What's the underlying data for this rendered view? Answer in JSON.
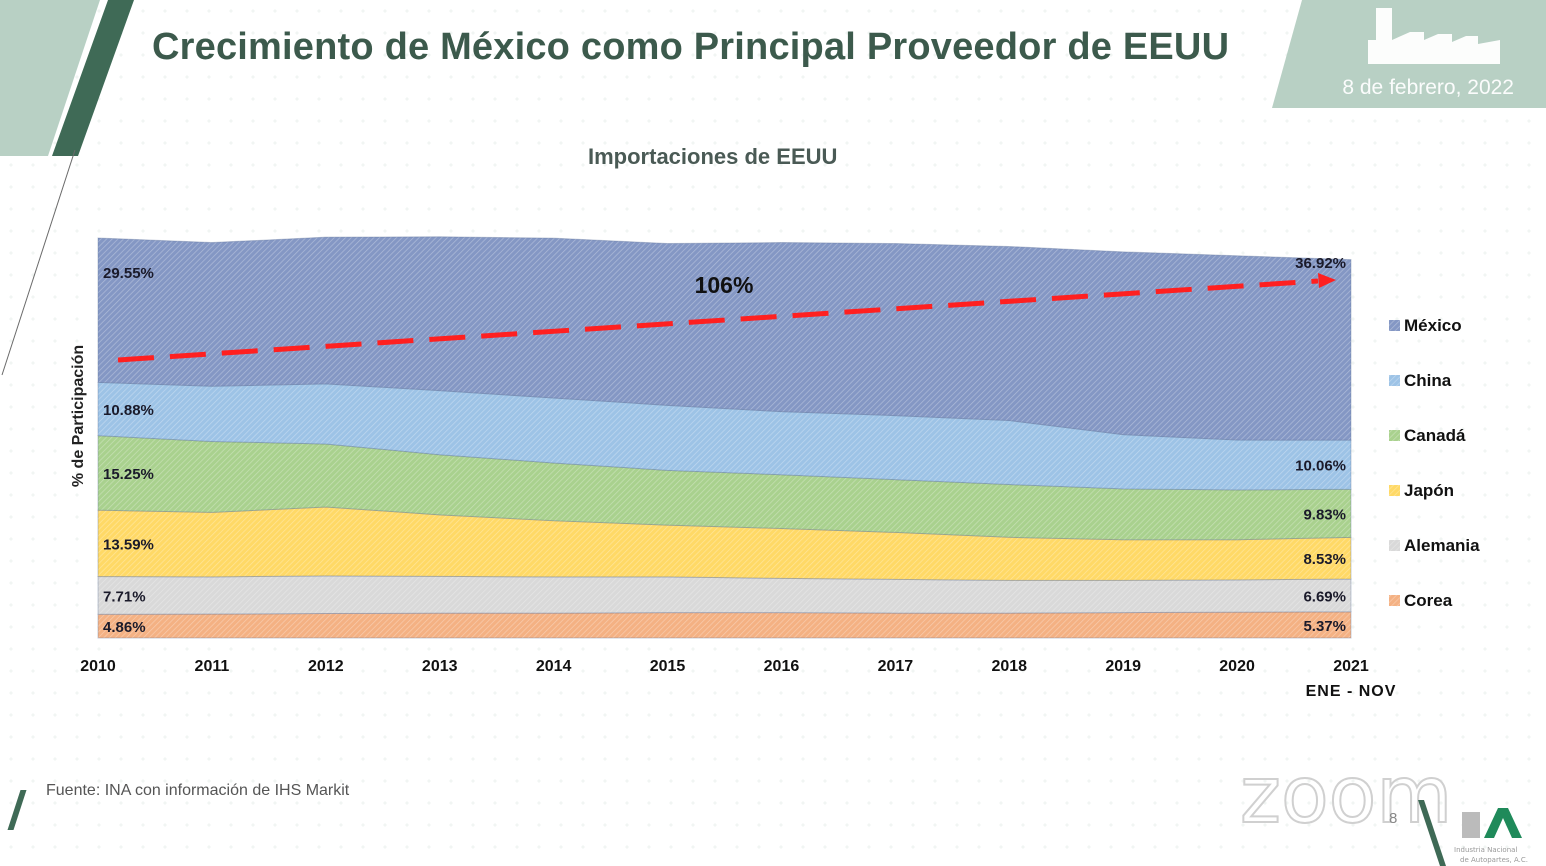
{
  "slide": {
    "title": "Crecimiento de México como Principal Proveedor de EEUU",
    "date": "8 de febrero, 2022",
    "source": "Fuente: INA con información de IHS Markit",
    "page_number": "8",
    "watermark": "zoom",
    "logo_text": "Industria Nacional de Autopartes, A.C.",
    "header_icon": "factory-icon"
  },
  "chart_data": {
    "type": "area",
    "stacked": true,
    "title": "Importaciones de EEUU",
    "xlabel": "",
    "ylabel": "% de Participación",
    "categories": [
      "2010",
      "2011",
      "2012",
      "2013",
      "2014",
      "2015",
      "2016",
      "2017",
      "2018",
      "2019",
      "2020",
      "2021"
    ],
    "last_category_sublabel": "ENE - NOV",
    "legend_position": "right",
    "grid": false,
    "series": [
      {
        "name": "Corea",
        "color": "#f4b183",
        "values": [
          4.86,
          4.9,
          5.0,
          5.1,
          5.1,
          5.2,
          5.2,
          5.1,
          5.1,
          5.2,
          5.3,
          5.37
        ]
      },
      {
        "name": "Alemania",
        "color": "#d9d9d9",
        "values": [
          7.71,
          7.6,
          7.7,
          7.5,
          7.4,
          7.3,
          7.0,
          6.9,
          6.7,
          6.6,
          6.6,
          6.69
        ]
      },
      {
        "name": "Japón",
        "color": "#ffd966",
        "values": [
          13.59,
          13.2,
          14.1,
          12.6,
          11.5,
          10.6,
          10.2,
          9.6,
          8.8,
          8.3,
          8.2,
          8.53
        ]
      },
      {
        "name": "Canadá",
        "color": "#a9d18e",
        "values": [
          15.25,
          14.5,
          12.9,
          12.3,
          11.8,
          11.2,
          11.0,
          10.8,
          10.8,
          10.4,
          10.2,
          9.83
        ]
      },
      {
        "name": "China",
        "color": "#9dc3e6",
        "values": [
          10.88,
          11.3,
          12.3,
          13.1,
          13.3,
          13.3,
          12.9,
          13.1,
          13.1,
          11.1,
          10.2,
          10.06
        ]
      },
      {
        "name": "México",
        "color": "#8497c4",
        "values": [
          29.55,
          29.4,
          30.0,
          31.5,
          32.7,
          33.1,
          34.6,
          35.2,
          35.6,
          37.4,
          37.7,
          36.92
        ]
      }
    ],
    "data_labels": {
      "start": {
        "México": "29.55%",
        "China": "10.88%",
        "Canadá": "15.25%",
        "Japón": "13.59%",
        "Alemania": "7.71%",
        "Corea": "4.86%"
      },
      "end": {
        "México": "36.92%",
        "China": "10.06%",
        "Canadá": "9.83%",
        "Japón": "8.53%",
        "Alemania": "6.69%",
        "Corea": "5.37%"
      }
    },
    "annotation": {
      "text": "106%",
      "type": "dashed-trend-arrow",
      "color": "#ff2020"
    },
    "legend_order": [
      "México",
      "China",
      "Canadá",
      "Japón",
      "Alemania",
      "Corea"
    ]
  }
}
